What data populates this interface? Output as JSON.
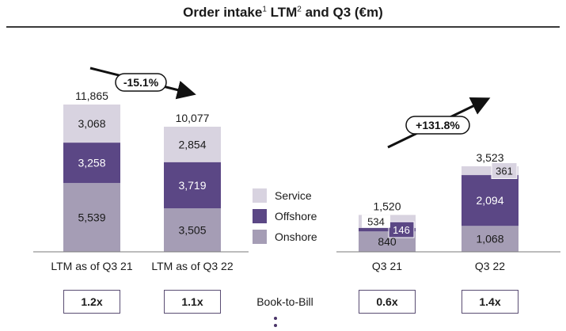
{
  "title": {
    "text_a": "Order intake",
    "sup_a": "1",
    "text_b": " LTM",
    "sup_b": "2",
    "text_c": " and Q3 (€m)"
  },
  "colors": {
    "service": "#d8d3e0",
    "offshore": "#5b4785",
    "onshore": "#a59db5",
    "axis": "#7a7a7a",
    "text": "#1a1a1a"
  },
  "chart_data": [
    {
      "type": "bar",
      "stacked": true,
      "categories": [
        "LTM as of Q3 21",
        "LTM as of Q3 22"
      ],
      "series": [
        {
          "name": "Onshore",
          "values": [
            5539,
            3505
          ]
        },
        {
          "name": "Offshore",
          "values": [
            3258,
            3719
          ]
        },
        {
          "name": "Service",
          "values": [
            3068,
            2854
          ]
        }
      ],
      "totals": [
        "11,865",
        "10,077"
      ],
      "change_label": "-15.1%"
    },
    {
      "type": "bar",
      "stacked": true,
      "categories": [
        "Q3 21",
        "Q3 22"
      ],
      "series": [
        {
          "name": "Onshore",
          "values": [
            840,
            1068
          ]
        },
        {
          "name": "Offshore",
          "values": [
            146,
            2094
          ]
        },
        {
          "name": "Service",
          "values": [
            534,
            361
          ]
        }
      ],
      "totals": [
        "1,520",
        "3,523"
      ],
      "change_label": "+131.8%"
    }
  ],
  "legend": [
    "Service",
    "Offshore",
    "Onshore"
  ],
  "book_to_bill": {
    "label": "Book-to-Bill",
    "values": [
      "1.2x",
      "1.1x",
      "0.6x",
      "1.4x"
    ]
  }
}
